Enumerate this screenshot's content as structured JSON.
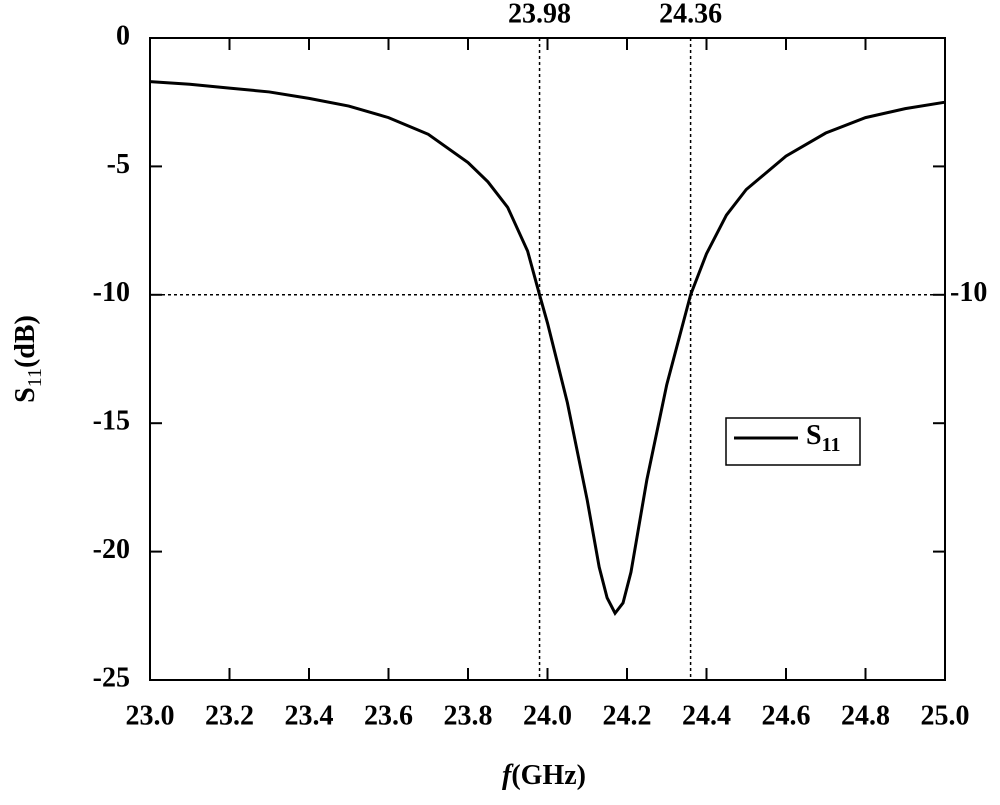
{
  "chart_data": {
    "type": "line",
    "x_label": {
      "symbol": "f",
      "unit": "(GHz)"
    },
    "y_label": {
      "symbol": "S",
      "sub": "11",
      "unit": "(dB)"
    },
    "x": [
      23.0,
      23.1,
      23.2,
      23.3,
      23.4,
      23.5,
      23.6,
      23.7,
      23.8,
      23.85,
      23.9,
      23.95,
      23.98,
      24.0,
      24.05,
      24.1,
      24.13,
      24.15,
      24.17,
      24.19,
      24.21,
      24.25,
      24.3,
      24.36,
      24.4,
      24.45,
      24.5,
      24.6,
      24.7,
      24.8,
      24.9,
      25.0
    ],
    "series": [
      {
        "name": "S",
        "name_sub": "11",
        "color": "#000000",
        "values": [
          -1.7,
          -1.8,
          -1.95,
          -2.1,
          -2.35,
          -2.65,
          -3.1,
          -3.75,
          -4.85,
          -5.6,
          -6.6,
          -8.3,
          -10,
          -11.1,
          -14.2,
          -18.0,
          -20.6,
          -21.8,
          -22.4,
          -22.0,
          -20.8,
          -17.2,
          -13.5,
          -10,
          -8.4,
          -6.9,
          -5.9,
          -4.6,
          -3.7,
          -3.1,
          -2.75,
          -2.5
        ]
      }
    ],
    "xlim": [
      23,
      25
    ],
    "ylim": [
      -25,
      0
    ],
    "xticks": [
      {
        "value": 23,
        "label": "23.0"
      },
      23.2,
      23.4,
      23.6,
      23.8,
      {
        "value": 24,
        "label": "24.0"
      },
      24.2,
      24.4,
      24.6,
      24.8,
      {
        "value": 25,
        "label": "25.0"
      }
    ],
    "yticks": [
      0,
      -5,
      -10,
      -15,
      -20,
      -25
    ],
    "x_reference_lines": [
      23.98,
      24.36
    ],
    "y_reference_lines": [
      -10
    ],
    "legend": "center-right"
  }
}
